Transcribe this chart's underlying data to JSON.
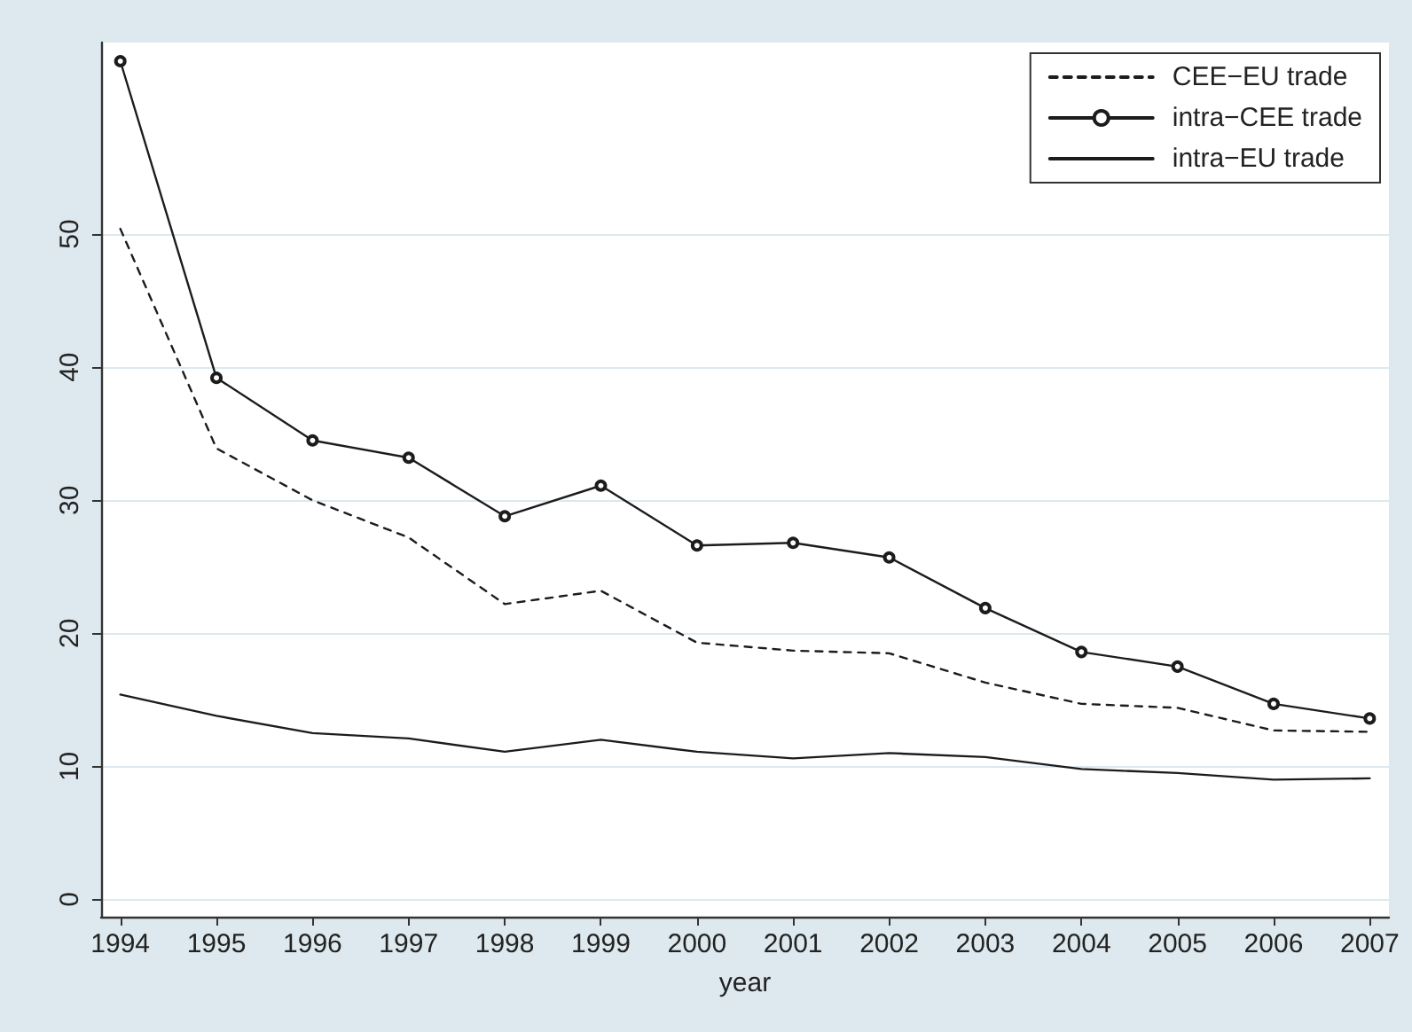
{
  "chart_data": {
    "type": "line",
    "xlabel": "year",
    "x": [
      1994,
      1995,
      1996,
      1997,
      1998,
      1999,
      2000,
      2001,
      2002,
      2003,
      2004,
      2005,
      2006,
      2007
    ],
    "series": [
      {
        "name": "CEE−EU trade",
        "color": "#1c1c1c",
        "line_style": "dashed",
        "marker": "none",
        "values": [
          50.4,
          33.9,
          30.0,
          27.2,
          22.2,
          23.2,
          19.3,
          18.7,
          18.5,
          16.3,
          14.7,
          14.4,
          12.7,
          12.6
        ]
      },
      {
        "name": "intra−CEE trade",
        "color": "#1c1c1c",
        "line_style": "solid",
        "marker": "circle",
        "values": [
          63.0,
          39.2,
          34.5,
          33.2,
          28.8,
          31.1,
          26.6,
          26.8,
          25.7,
          21.9,
          18.6,
          17.5,
          14.7,
          13.6
        ]
      },
      {
        "name": "intra−EU trade",
        "color": "#1c1c1c",
        "line_style": "solid",
        "marker": "none",
        "values": [
          15.4,
          13.8,
          12.5,
          12.1,
          11.1,
          12.0,
          11.1,
          10.6,
          11.0,
          10.7,
          9.8,
          9.5,
          9.0,
          9.1
        ]
      }
    ],
    "xlim": [
      1993.8,
      2007.2
    ],
    "xticks": [
      1994,
      1995,
      1996,
      1997,
      1998,
      1999,
      2000,
      2001,
      2002,
      2003,
      2004,
      2005,
      2006,
      2007
    ],
    "ylim": [
      -1.3,
      64.4
    ],
    "yticks": [
      0,
      10,
      20,
      30,
      40,
      50
    ],
    "grid": "y",
    "legend": "top right"
  }
}
